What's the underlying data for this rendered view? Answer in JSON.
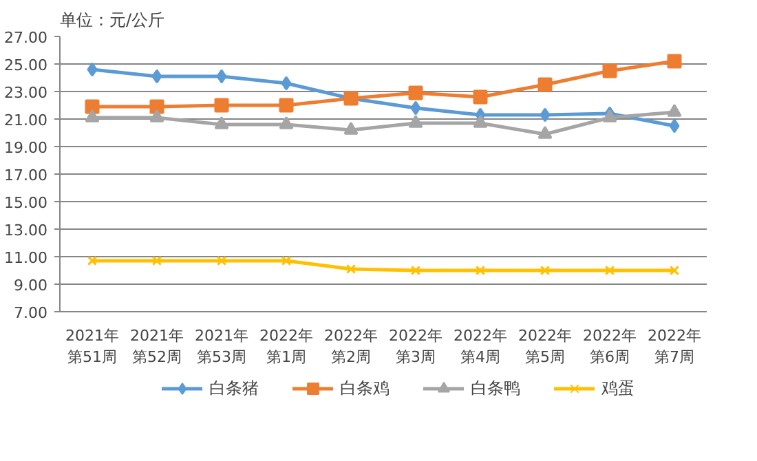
{
  "chart_data": {
    "type": "line",
    "title": "单位：元/公斤",
    "categories": [
      "2021年第51周",
      "2021年第52周",
      "2021年第53周",
      "2022年第1周",
      "2022年第2周",
      "2022年第3周",
      "2022年第4周",
      "2022年第5周",
      "2022年第6周",
      "2022年第7周"
    ],
    "series": [
      {
        "name": "白条猪",
        "color": "#5b9bd5",
        "marker": "diamond",
        "values": [
          24.6,
          24.1,
          24.1,
          23.6,
          22.5,
          21.8,
          21.3,
          21.3,
          21.4,
          20.5
        ]
      },
      {
        "name": "白条鸡",
        "color": "#ed7d31",
        "marker": "square",
        "values": [
          21.9,
          21.9,
          22.0,
          22.0,
          22.5,
          22.9,
          22.6,
          23.5,
          24.5,
          25.2
        ]
      },
      {
        "name": "白条鸭",
        "color": "#a5a5a5",
        "marker": "triangle",
        "values": [
          21.1,
          21.1,
          20.6,
          20.6,
          20.2,
          20.7,
          20.7,
          19.9,
          21.1,
          21.5
        ]
      },
      {
        "name": "鸡蛋",
        "color": "#ffc000",
        "marker": "cross",
        "values": [
          10.7,
          10.7,
          10.7,
          10.7,
          10.1,
          10.0,
          10.0,
          10.0,
          10.0,
          10.0
        ]
      }
    ],
    "ylim": [
      7,
      27
    ],
    "yticks": [
      {
        "value": 7,
        "label": "7.00"
      },
      {
        "value": 9,
        "label": "9.00"
      },
      {
        "value": 11,
        "label": "11.00"
      },
      {
        "value": 13,
        "label": "13.00"
      },
      {
        "value": 15,
        "label": "15.00"
      },
      {
        "value": 17,
        "label": "17.00"
      },
      {
        "value": 19,
        "label": "19.00"
      },
      {
        "value": 21,
        "label": "21.00"
      },
      {
        "value": 23,
        "label": "23.00"
      },
      {
        "value": 25,
        "label": "25.00"
      },
      {
        "value": 27,
        "label": "27.00"
      }
    ],
    "grid": "y",
    "legend": "bottom",
    "line_style": "solid"
  }
}
